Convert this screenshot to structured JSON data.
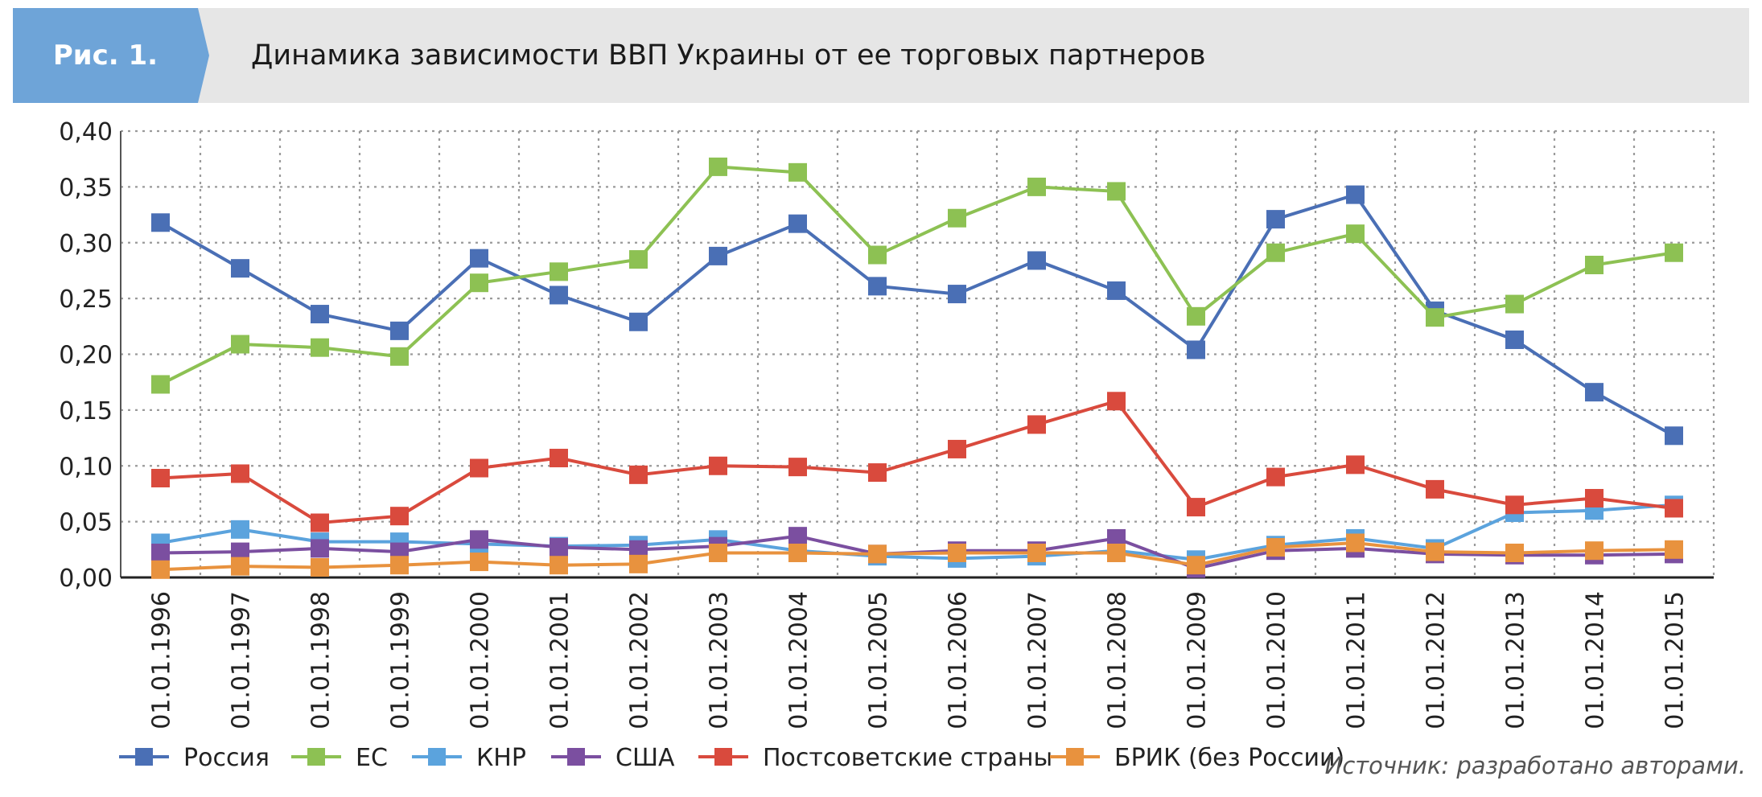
{
  "figure_label": "Рис. 1.",
  "chart_title": "Динамика зависимости ВВП Украины от ее торговых партнеров",
  "source_note": "Источник: разработано авторами.",
  "chart_data": {
    "type": "line",
    "title": "Динамика зависимости ВВП Украины от ее торговых партнеров",
    "x": [
      "01.01.1996",
      "01.01.1997",
      "01.01.1998",
      "01.01.1999",
      "01.01.2000",
      "01.01.2001",
      "01.01.2002",
      "01.01.2003",
      "01.01.2004",
      "01.01.2005",
      "01.01.2006",
      "01.01.2007",
      "01.01.2008",
      "01.01.2009",
      "01.01.2010",
      "01.01.2011",
      "01.01.2012",
      "01.01.2013",
      "01.01.2014",
      "01.01.2015"
    ],
    "y_ticks": [
      "0,00",
      "0,05",
      "0,10",
      "0,15",
      "0,20",
      "0,25",
      "0,30",
      "0,35",
      "0,40"
    ],
    "ylim": [
      0,
      0.4
    ],
    "grid": true,
    "legend_position": "bottom",
    "series": [
      {
        "name": "Россия",
        "color": "#4a6fb5",
        "values": [
          0.318,
          0.277,
          0.236,
          0.221,
          0.286,
          0.253,
          0.229,
          0.288,
          0.317,
          0.261,
          0.254,
          0.284,
          0.257,
          0.204,
          0.321,
          0.343,
          0.239,
          0.213,
          0.166,
          0.127
        ]
      },
      {
        "name": "ЕС",
        "color": "#8dc153",
        "values": [
          0.173,
          0.209,
          0.206,
          0.198,
          0.264,
          0.274,
          0.285,
          0.368,
          0.363,
          0.289,
          0.322,
          0.35,
          0.346,
          0.234,
          0.291,
          0.308,
          0.233,
          0.245,
          0.28,
          0.291
        ]
      },
      {
        "name": "КНР",
        "color": "#5ba3dd",
        "values": [
          0.031,
          0.043,
          0.032,
          0.032,
          0.03,
          0.028,
          0.029,
          0.034,
          0.024,
          0.019,
          0.017,
          0.019,
          0.024,
          0.016,
          0.029,
          0.035,
          0.026,
          0.058,
          0.06,
          0.065
        ]
      },
      {
        "name": "США",
        "color": "#7b4fa0",
        "values": [
          0.022,
          0.023,
          0.026,
          0.023,
          0.034,
          0.027,
          0.025,
          0.028,
          0.037,
          0.021,
          0.024,
          0.024,
          0.035,
          0.008,
          0.024,
          0.026,
          0.021,
          0.02,
          0.02,
          0.021
        ]
      },
      {
        "name": "Постсоветские страны",
        "color": "#d94a3d",
        "values": [
          0.089,
          0.093,
          0.049,
          0.055,
          0.098,
          0.107,
          0.092,
          0.1,
          0.099,
          0.094,
          0.115,
          0.137,
          0.158,
          0.063,
          0.09,
          0.101,
          0.079,
          0.065,
          0.071,
          0.062
        ]
      },
      {
        "name": "БРИК (без России)",
        "color": "#e8923e",
        "values": [
          0.007,
          0.01,
          0.009,
          0.011,
          0.014,
          0.011,
          0.012,
          0.022,
          0.022,
          0.021,
          0.022,
          0.022,
          0.022,
          0.011,
          0.027,
          0.031,
          0.023,
          0.022,
          0.024,
          0.025
        ]
      }
    ]
  }
}
